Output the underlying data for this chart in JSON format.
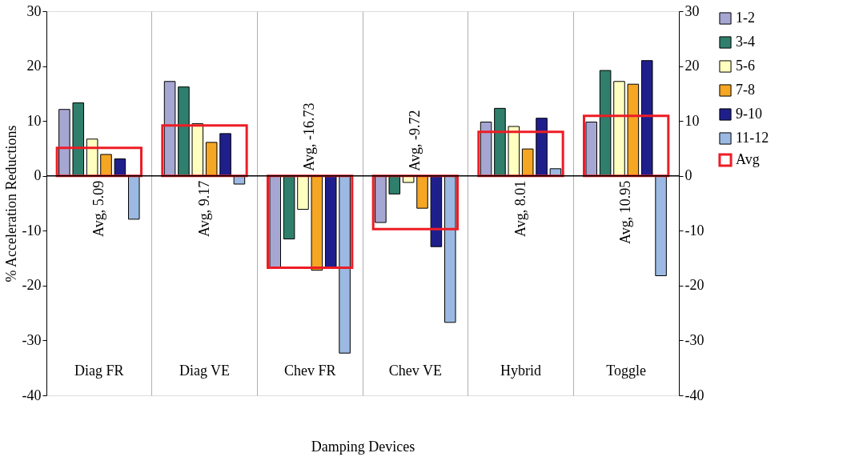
{
  "chart_data": {
    "type": "bar",
    "xlabel": "Damping Devices",
    "ylabel": "% Acceleration Reductions",
    "categories": [
      "Diag FR",
      "Diag VE",
      "Chev FR",
      "Chev VE",
      "Hybrid",
      "Toggle"
    ],
    "series": [
      {
        "name": "1-2",
        "color": "#a6a6d2",
        "values": [
          12.1,
          17.2,
          -16.7,
          -8.5,
          9.8,
          9.8
        ]
      },
      {
        "name": "3-4",
        "color": "#2f7f6c",
        "values": [
          13.3,
          16.2,
          -11.5,
          -3.3,
          12.3,
          19.2
        ]
      },
      {
        "name": "5-6",
        "color": "#ffffc0",
        "values": [
          6.7,
          9.5,
          -6.1,
          -1.2,
          9.0,
          17.2
        ]
      },
      {
        "name": "7-8",
        "color": "#f5a623",
        "values": [
          3.9,
          6.1,
          -17.2,
          -5.9,
          4.9,
          16.7
        ]
      },
      {
        "name": "9-10",
        "color": "#1f1f8c",
        "values": [
          3.1,
          7.7,
          -16.7,
          -12.9,
          10.5,
          21.0
        ]
      },
      {
        "name": "11-12",
        "color": "#9bb9e2",
        "values": [
          -7.9,
          -1.5,
          -32.3,
          -26.7,
          1.3,
          -18.2
        ]
      },
      {
        "name": "Avg",
        "type": "bar",
        "color": "#ee1c25",
        "values": [
          5.09,
          9.17,
          -16.73,
          -9.72,
          8.01,
          10.95
        ],
        "value_labels": [
          "Avg, 5.09",
          "Avg, 9.17",
          "Avg, -16.73",
          "Avg, -9.72",
          "Avg, 8.01",
          "Avg, 10.95"
        ]
      }
    ],
    "ylim": [
      -40,
      30
    ],
    "yticks": [
      -40,
      -30,
      -20,
      -10,
      0,
      10,
      20,
      30
    ],
    "y2lim": [
      -40,
      30
    ],
    "y2ticks": [
      -40,
      -30,
      -20,
      -10,
      0,
      10,
      20,
      30
    ],
    "grid": "x",
    "legend": "right",
    "ref_lines": [
      {
        "axis": "y",
        "value": 0
      }
    ]
  }
}
